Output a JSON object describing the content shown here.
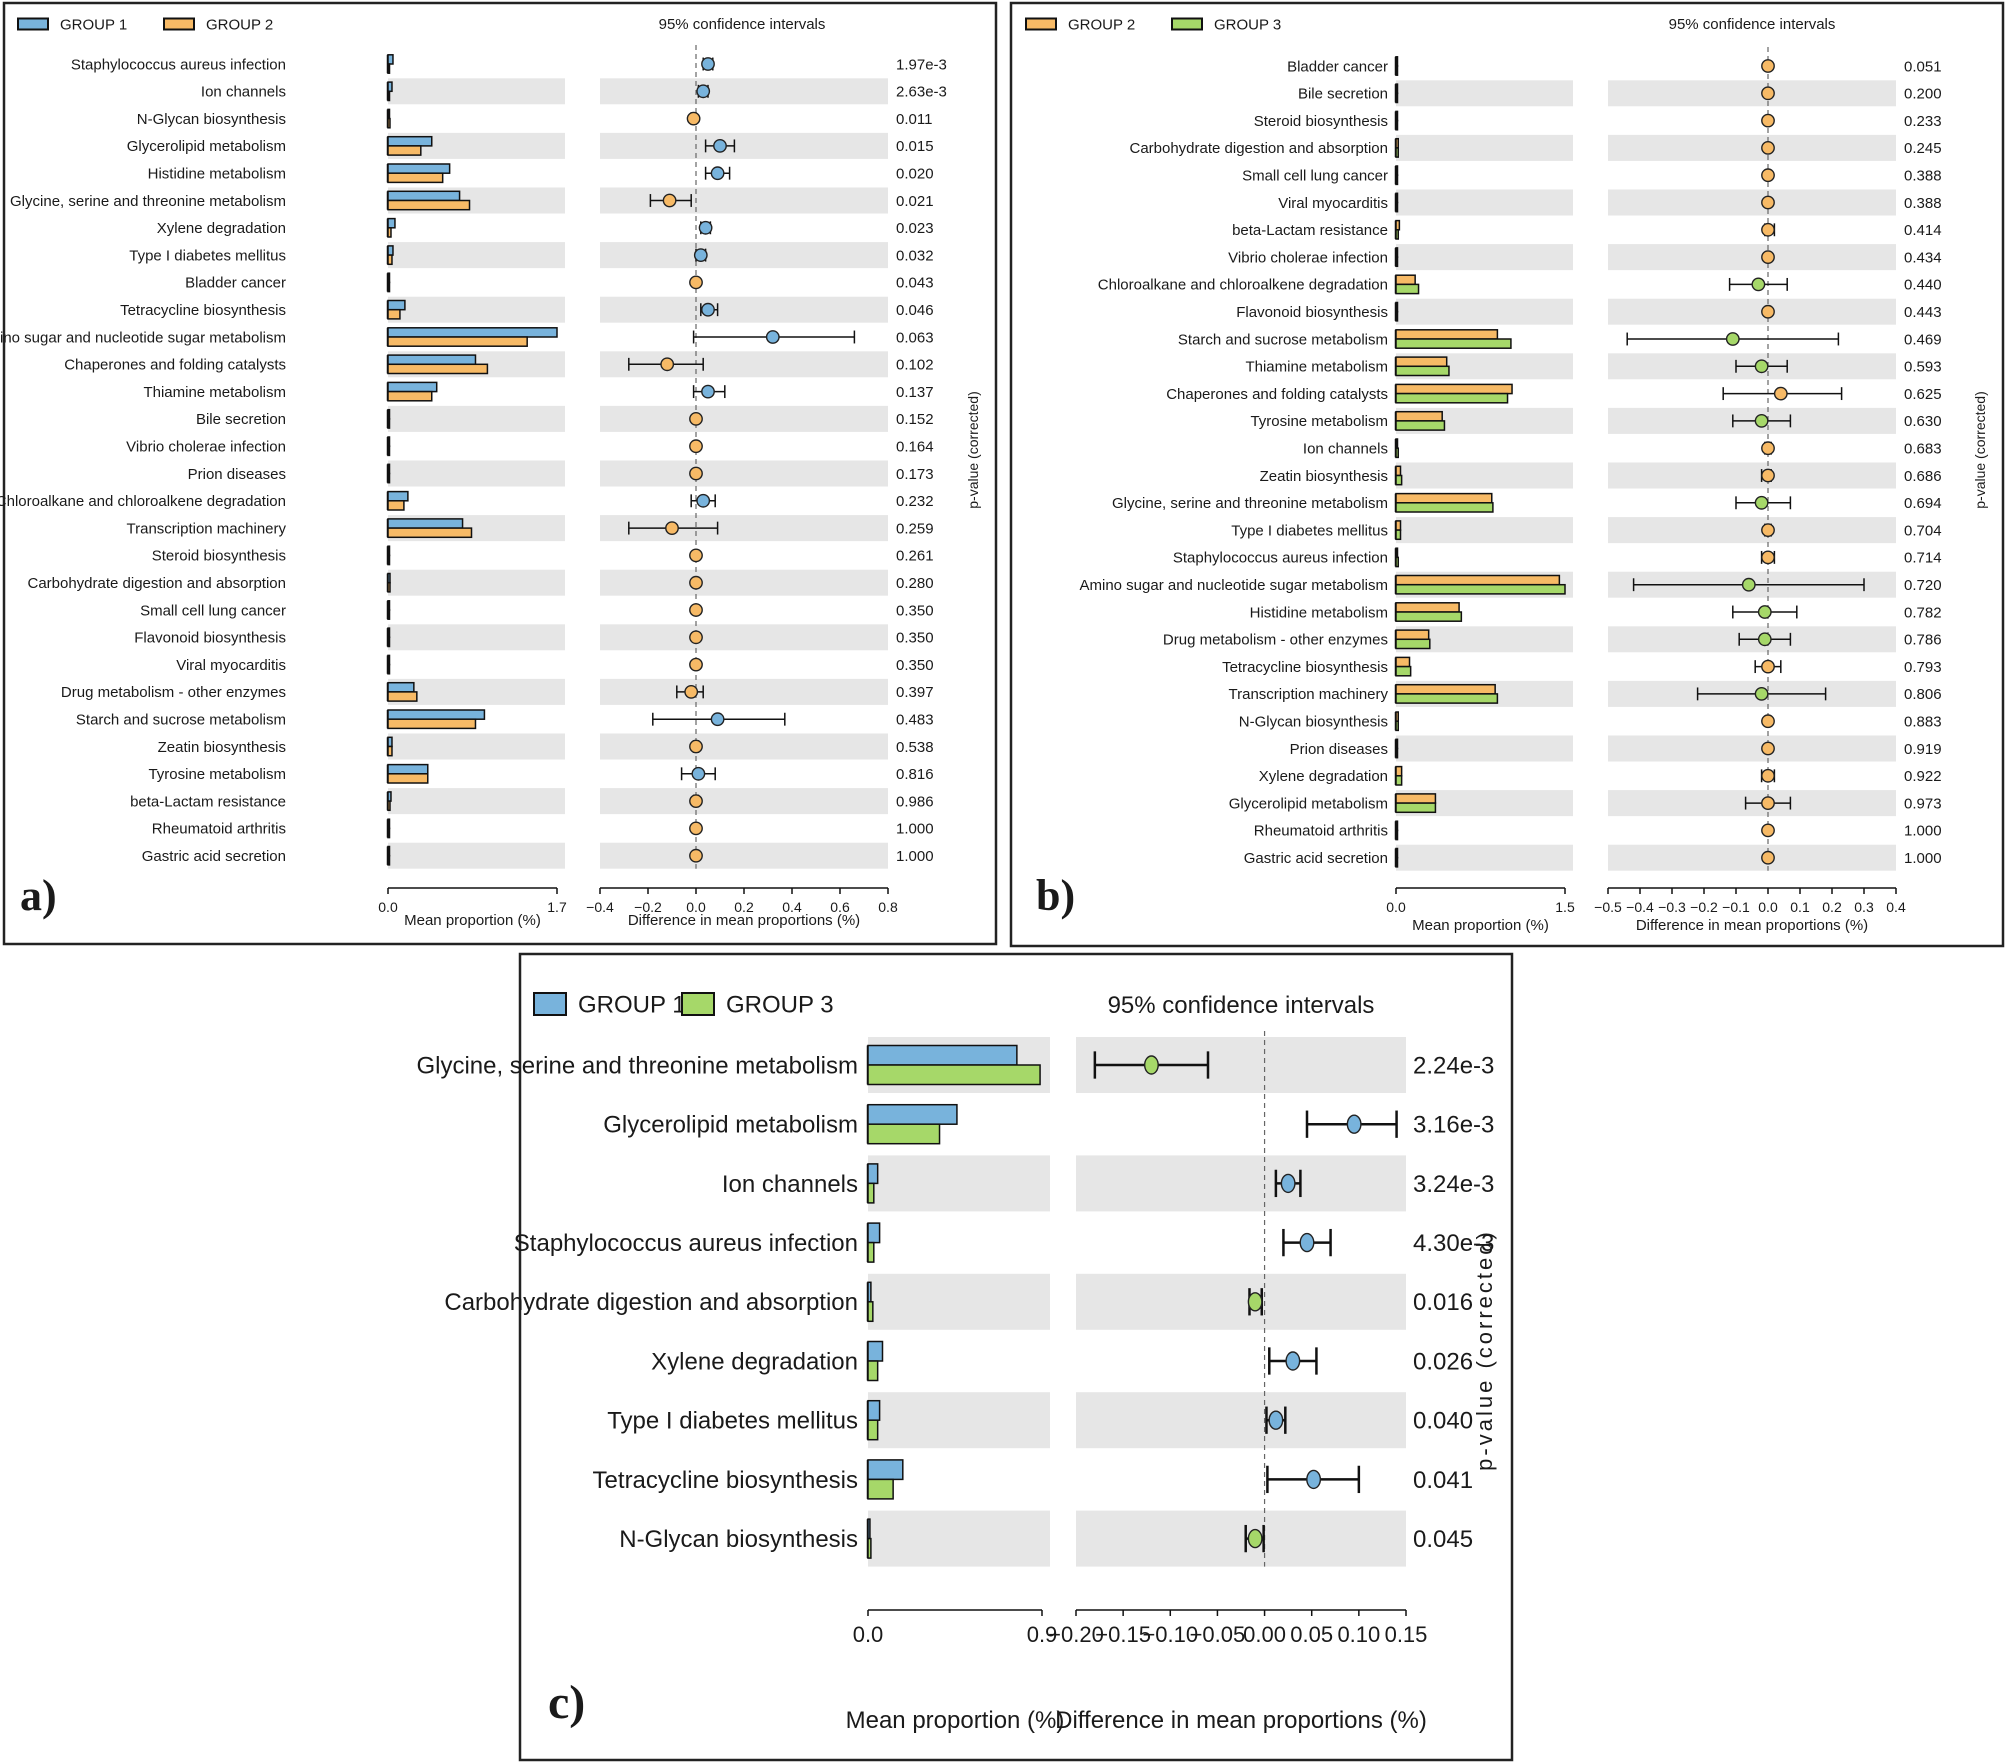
{
  "colors": {
    "group1": "#78b3dc",
    "group2": "#f7ba66",
    "group3": "#a6d869",
    "band": "#e6e6e6",
    "frame": "#222222"
  },
  "chart_data": [
    {
      "panel": "a)",
      "type": "extended_error_bar",
      "title": "95% confidence intervals",
      "groups": [
        {
          "name": "GROUP 1",
          "color_key": "group1"
        },
        {
          "name": "GROUP 2",
          "color_key": "group2"
        }
      ],
      "bar_xlabel": "Mean proportion (%)",
      "bar_ticks": [
        "0.0",
        "1.7"
      ],
      "bar_xlim": [
        0,
        1.7
      ],
      "ci_xlabel": "Difference in mean proportions (%)",
      "ci_ticks": [
        "−0.4",
        "−0.2",
        "0.0",
        "0.2",
        "0.4",
        "0.6",
        "0.8"
      ],
      "ci_xlim": [
        -0.4,
        0.8
      ],
      "pvalue_label": "p-value (corrected)",
      "rows": [
        {
          "name": "Staphylococcus aureus infection",
          "g1": 0.05,
          "g2": 0.01,
          "diff": 0.05,
          "lo": 0.03,
          "hi": 0.07,
          "p": "1.97e-3"
        },
        {
          "name": "Ion channels",
          "g1": 0.04,
          "g2": 0.01,
          "diff": 0.03,
          "lo": 0.01,
          "hi": 0.05,
          "p": "2.63e-3"
        },
        {
          "name": "N-Glycan biosynthesis",
          "g1": 0.01,
          "g2": 0.02,
          "diff": -0.01,
          "lo": -0.02,
          "hi": 0.0,
          "p": "0.011"
        },
        {
          "name": "Glycerolipid metabolism",
          "g1": 0.44,
          "g2": 0.33,
          "diff": 0.1,
          "lo": 0.04,
          "hi": 0.16,
          "p": "0.015"
        },
        {
          "name": "Histidine metabolism",
          "g1": 0.62,
          "g2": 0.55,
          "diff": 0.09,
          "lo": 0.04,
          "hi": 0.14,
          "p": "0.020"
        },
        {
          "name": "Glycine, serine and threonine metabolism",
          "g1": 0.72,
          "g2": 0.82,
          "diff": -0.11,
          "lo": -0.19,
          "hi": -0.02,
          "p": "0.021"
        },
        {
          "name": "Xylene degradation",
          "g1": 0.07,
          "g2": 0.03,
          "diff": 0.04,
          "lo": 0.02,
          "hi": 0.06,
          "p": "0.023"
        },
        {
          "name": "Type I diabetes mellitus",
          "g1": 0.05,
          "g2": 0.04,
          "diff": 0.02,
          "lo": 0.0,
          "hi": 0.04,
          "p": "0.032"
        },
        {
          "name": "Bladder cancer",
          "g1": 0.01,
          "g2": 0.01,
          "diff": 0.0,
          "lo": -0.005,
          "hi": 0.005,
          "p": "0.043"
        },
        {
          "name": "Tetracycline biosynthesis",
          "g1": 0.17,
          "g2": 0.12,
          "diff": 0.05,
          "lo": 0.02,
          "hi": 0.09,
          "p": "0.046"
        },
        {
          "name": "Amino sugar and nucleotide sugar metabolism",
          "g1": 1.7,
          "g2": 1.4,
          "diff": 0.32,
          "lo": -0.01,
          "hi": 0.66,
          "p": "0.063"
        },
        {
          "name": "Chaperones and folding catalysts",
          "g1": 0.88,
          "g2": 1.0,
          "diff": -0.12,
          "lo": -0.28,
          "hi": 0.03,
          "p": "0.102"
        },
        {
          "name": "Thiamine metabolism",
          "g1": 0.49,
          "g2": 0.44,
          "diff": 0.05,
          "lo": -0.01,
          "hi": 0.12,
          "p": "0.137"
        },
        {
          "name": "Bile secretion",
          "g1": 0.01,
          "g2": 0.01,
          "diff": 0.0,
          "lo": -0.005,
          "hi": 0.005,
          "p": "0.152"
        },
        {
          "name": "Vibrio cholerae infection",
          "g1": 0.01,
          "g2": 0.01,
          "diff": 0.0,
          "lo": -0.005,
          "hi": 0.005,
          "p": "0.164"
        },
        {
          "name": "Prion diseases",
          "g1": 0.01,
          "g2": 0.01,
          "diff": 0.0,
          "lo": -0.005,
          "hi": 0.005,
          "p": "0.173"
        },
        {
          "name": "Chloroalkane and chloroalkene degradation",
          "g1": 0.2,
          "g2": 0.16,
          "diff": 0.03,
          "lo": -0.02,
          "hi": 0.08,
          "p": "0.232"
        },
        {
          "name": "Transcription machinery",
          "g1": 0.75,
          "g2": 0.84,
          "diff": -0.1,
          "lo": -0.28,
          "hi": 0.09,
          "p": "0.259"
        },
        {
          "name": "Steroid biosynthesis",
          "g1": 0.01,
          "g2": 0.01,
          "diff": 0.0,
          "lo": -0.005,
          "hi": 0.005,
          "p": "0.261"
        },
        {
          "name": "Carbohydrate digestion and absorption",
          "g1": 0.02,
          "g2": 0.02,
          "diff": 0.0,
          "lo": -0.005,
          "hi": 0.005,
          "p": "0.280"
        },
        {
          "name": "Small cell lung cancer",
          "g1": 0.01,
          "g2": 0.01,
          "diff": 0.0,
          "lo": -0.005,
          "hi": 0.005,
          "p": "0.350"
        },
        {
          "name": "Flavonoid biosynthesis",
          "g1": 0.01,
          "g2": 0.01,
          "diff": 0.0,
          "lo": -0.005,
          "hi": 0.005,
          "p": "0.350"
        },
        {
          "name": "Viral myocarditis",
          "g1": 0.01,
          "g2": 0.01,
          "diff": 0.0,
          "lo": -0.005,
          "hi": 0.005,
          "p": "0.350"
        },
        {
          "name": "Drug metabolism - other enzymes",
          "g1": 0.26,
          "g2": 0.29,
          "diff": -0.02,
          "lo": -0.08,
          "hi": 0.03,
          "p": "0.397"
        },
        {
          "name": "Starch and sucrose metabolism",
          "g1": 0.97,
          "g2": 0.88,
          "diff": 0.09,
          "lo": -0.18,
          "hi": 0.37,
          "p": "0.483"
        },
        {
          "name": "Zeatin biosynthesis",
          "g1": 0.04,
          "g2": 0.04,
          "diff": 0.0,
          "lo": -0.01,
          "hi": 0.01,
          "p": "0.538"
        },
        {
          "name": "Tyrosine metabolism",
          "g1": 0.4,
          "g2": 0.4,
          "diff": 0.01,
          "lo": -0.06,
          "hi": 0.08,
          "p": "0.816"
        },
        {
          "name": "beta-Lactam resistance",
          "g1": 0.03,
          "g2": 0.02,
          "diff": 0.0,
          "lo": -0.01,
          "hi": 0.01,
          "p": "0.986"
        },
        {
          "name": "Rheumatoid arthritis",
          "g1": 0.005,
          "g2": 0.005,
          "diff": 0.0,
          "lo": -0.003,
          "hi": 0.003,
          "p": "1.000"
        },
        {
          "name": "Gastric acid secretion",
          "g1": 0.005,
          "g2": 0.005,
          "diff": 0.0,
          "lo": -0.003,
          "hi": 0.003,
          "p": "1.000"
        }
      ]
    },
    {
      "panel": "b)",
      "type": "extended_error_bar",
      "title": "95% confidence intervals",
      "groups": [
        {
          "name": "GROUP 2",
          "color_key": "group2"
        },
        {
          "name": "GROUP 3",
          "color_key": "group3"
        }
      ],
      "bar_xlabel": "Mean proportion (%)",
      "bar_ticks": [
        "0.0",
        "1.5"
      ],
      "bar_xlim": [
        0,
        1.5
      ],
      "ci_xlabel": "Difference in mean proportions (%)",
      "ci_ticks": [
        "−0.5",
        "−0.4",
        "−0.3",
        "−0.2",
        "−0.1",
        "0.0",
        "0.1",
        "0.2",
        "0.3",
        "0.4"
      ],
      "ci_xlim": [
        -0.5,
        0.4
      ],
      "pvalue_label": "p-value (corrected)",
      "rows": [
        {
          "name": "Bladder cancer",
          "g1": 0.01,
          "g2": 0.01,
          "diff": 0.0,
          "lo": -0.005,
          "hi": 0.005,
          "p": "0.051"
        },
        {
          "name": "Bile secretion",
          "g1": 0.01,
          "g2": 0.01,
          "diff": 0.0,
          "lo": -0.005,
          "hi": 0.005,
          "p": "0.200"
        },
        {
          "name": "Steroid biosynthesis",
          "g1": 0.01,
          "g2": 0.01,
          "diff": 0.0,
          "lo": -0.005,
          "hi": 0.005,
          "p": "0.233"
        },
        {
          "name": "Carbohydrate digestion and absorption",
          "g1": 0.02,
          "g2": 0.02,
          "diff": 0.0,
          "lo": -0.005,
          "hi": 0.005,
          "p": "0.245"
        },
        {
          "name": "Small cell lung cancer",
          "g1": 0.01,
          "g2": 0.01,
          "diff": 0.0,
          "lo": -0.005,
          "hi": 0.005,
          "p": "0.388"
        },
        {
          "name": "Viral myocarditis",
          "g1": 0.01,
          "g2": 0.01,
          "diff": 0.0,
          "lo": -0.005,
          "hi": 0.005,
          "p": "0.388"
        },
        {
          "name": "beta-Lactam resistance",
          "g1": 0.03,
          "g2": 0.02,
          "diff": 0.0,
          "lo": -0.01,
          "hi": 0.02,
          "p": "0.414"
        },
        {
          "name": "Vibrio cholerae infection",
          "g1": 0.01,
          "g2": 0.01,
          "diff": 0.0,
          "lo": -0.005,
          "hi": 0.005,
          "p": "0.434"
        },
        {
          "name": "Chloroalkane and chloroalkene degradation",
          "g1": 0.17,
          "g2": 0.2,
          "diff": -0.03,
          "lo": -0.12,
          "hi": 0.06,
          "p": "0.440"
        },
        {
          "name": "Flavonoid biosynthesis",
          "g1": 0.01,
          "g2": 0.01,
          "diff": 0.0,
          "lo": -0.005,
          "hi": 0.005,
          "p": "0.443"
        },
        {
          "name": "Starch and sucrose metabolism",
          "g1": 0.9,
          "g2": 1.02,
          "diff": -0.11,
          "lo": -0.44,
          "hi": 0.22,
          "p": "0.469"
        },
        {
          "name": "Thiamine metabolism",
          "g1": 0.45,
          "g2": 0.47,
          "diff": -0.02,
          "lo": -0.1,
          "hi": 0.06,
          "p": "0.593"
        },
        {
          "name": "Chaperones and folding catalysts",
          "g1": 1.03,
          "g2": 0.99,
          "diff": 0.04,
          "lo": -0.14,
          "hi": 0.23,
          "p": "0.625"
        },
        {
          "name": "Tyrosine metabolism",
          "g1": 0.41,
          "g2": 0.43,
          "diff": -0.02,
          "lo": -0.11,
          "hi": 0.07,
          "p": "0.630"
        },
        {
          "name": "Ion channels",
          "g1": 0.01,
          "g2": 0.02,
          "diff": 0.0,
          "lo": -0.01,
          "hi": 0.01,
          "p": "0.683"
        },
        {
          "name": "Zeatin biosynthesis",
          "g1": 0.04,
          "g2": 0.05,
          "diff": 0.0,
          "lo": -0.02,
          "hi": 0.01,
          "p": "0.686"
        },
        {
          "name": "Glycine, serine and threonine metabolism",
          "g1": 0.85,
          "g2": 0.86,
          "diff": -0.02,
          "lo": -0.1,
          "hi": 0.07,
          "p": "0.694"
        },
        {
          "name": "Type I diabetes mellitus",
          "g1": 0.04,
          "g2": 0.04,
          "diff": 0.0,
          "lo": -0.01,
          "hi": 0.01,
          "p": "0.704"
        },
        {
          "name": "Staphylococcus aureus infection",
          "g1": 0.01,
          "g2": 0.02,
          "diff": 0.0,
          "lo": -0.02,
          "hi": 0.02,
          "p": "0.714"
        },
        {
          "name": "Amino sugar and nucleotide sugar metabolism",
          "g1": 1.45,
          "g2": 1.5,
          "diff": -0.06,
          "lo": -0.42,
          "hi": 0.3,
          "p": "0.720"
        },
        {
          "name": "Histidine metabolism",
          "g1": 0.56,
          "g2": 0.58,
          "diff": -0.01,
          "lo": -0.11,
          "hi": 0.09,
          "p": "0.782"
        },
        {
          "name": "Drug metabolism - other enzymes",
          "g1": 0.29,
          "g2": 0.3,
          "diff": -0.01,
          "lo": -0.09,
          "hi": 0.07,
          "p": "0.786"
        },
        {
          "name": "Tetracycline biosynthesis",
          "g1": 0.12,
          "g2": 0.13,
          "diff": 0.0,
          "lo": -0.04,
          "hi": 0.04,
          "p": "0.793"
        },
        {
          "name": "Transcription machinery",
          "g1": 0.88,
          "g2": 0.9,
          "diff": -0.02,
          "lo": -0.22,
          "hi": 0.18,
          "p": "0.806"
        },
        {
          "name": "N-Glycan biosynthesis",
          "g1": 0.02,
          "g2": 0.02,
          "diff": 0.0,
          "lo": -0.005,
          "hi": 0.005,
          "p": "0.883"
        },
        {
          "name": "Prion diseases",
          "g1": 0.01,
          "g2": 0.01,
          "diff": 0.0,
          "lo": -0.005,
          "hi": 0.005,
          "p": "0.919"
        },
        {
          "name": "Xylene degradation",
          "g1": 0.05,
          "g2": 0.05,
          "diff": 0.0,
          "lo": -0.02,
          "hi": 0.02,
          "p": "0.922"
        },
        {
          "name": "Glycerolipid metabolism",
          "g1": 0.35,
          "g2": 0.35,
          "diff": 0.0,
          "lo": -0.07,
          "hi": 0.07,
          "p": "0.973"
        },
        {
          "name": "Rheumatoid arthritis",
          "g1": 0.005,
          "g2": 0.005,
          "diff": 0.0,
          "lo": -0.003,
          "hi": 0.003,
          "p": "1.000"
        },
        {
          "name": "Gastric acid secretion",
          "g1": 0.005,
          "g2": 0.005,
          "diff": 0.0,
          "lo": -0.003,
          "hi": 0.003,
          "p": "1.000"
        }
      ]
    },
    {
      "panel": "c)",
      "type": "extended_error_bar",
      "title": "95% confidence intervals",
      "groups": [
        {
          "name": "GROUP 1",
          "color_key": "group1"
        },
        {
          "name": "GROUP 3",
          "color_key": "group3"
        }
      ],
      "bar_xlabel": "Mean proportion (%)",
      "bar_ticks": [
        "0.0",
        "0.9"
      ],
      "bar_xlim": [
        0,
        0.9
      ],
      "ci_xlabel": "Difference in mean proportions (%)",
      "ci_ticks": [
        "−0.20",
        "−0.15",
        "−0.10",
        "−0.05",
        "0.00",
        "0.05",
        "0.10",
        "0.15"
      ],
      "ci_xlim": [
        -0.2,
        0.15
      ],
      "pvalue_label": "p-value (corrected)",
      "rows": [
        {
          "name": "Glycine, serine and threonine metabolism",
          "g1": 0.77,
          "g2": 0.89,
          "diff": -0.12,
          "lo": -0.18,
          "hi": -0.06,
          "p": "2.24e-3"
        },
        {
          "name": "Glycerolipid metabolism",
          "g1": 0.46,
          "g2": 0.37,
          "diff": 0.095,
          "lo": 0.045,
          "hi": 0.14,
          "p": "3.16e-3"
        },
        {
          "name": "Ion channels",
          "g1": 0.05,
          "g2": 0.03,
          "diff": 0.025,
          "lo": 0.012,
          "hi": 0.038,
          "p": "3.24e-3"
        },
        {
          "name": "Staphylococcus aureus infection",
          "g1": 0.06,
          "g2": 0.03,
          "diff": 0.045,
          "lo": 0.02,
          "hi": 0.07,
          "p": "4.30e-3"
        },
        {
          "name": "Carbohydrate digestion and absorption",
          "g1": 0.015,
          "g2": 0.025,
          "diff": -0.01,
          "lo": -0.016,
          "hi": -0.003,
          "p": "0.016"
        },
        {
          "name": "Xylene degradation",
          "g1": 0.075,
          "g2": 0.05,
          "diff": 0.03,
          "lo": 0.005,
          "hi": 0.055,
          "p": "0.026"
        },
        {
          "name": "Type I diabetes mellitus",
          "g1": 0.06,
          "g2": 0.05,
          "diff": 0.012,
          "lo": 0.002,
          "hi": 0.022,
          "p": "0.040"
        },
        {
          "name": "Tetracycline biosynthesis",
          "g1": 0.18,
          "g2": 0.13,
          "diff": 0.052,
          "lo": 0.003,
          "hi": 0.1,
          "p": "0.041"
        },
        {
          "name": "N-Glycan biosynthesis",
          "g1": 0.01,
          "g2": 0.015,
          "diff": -0.01,
          "lo": -0.02,
          "hi": -0.001,
          "p": "0.045"
        }
      ]
    }
  ]
}
